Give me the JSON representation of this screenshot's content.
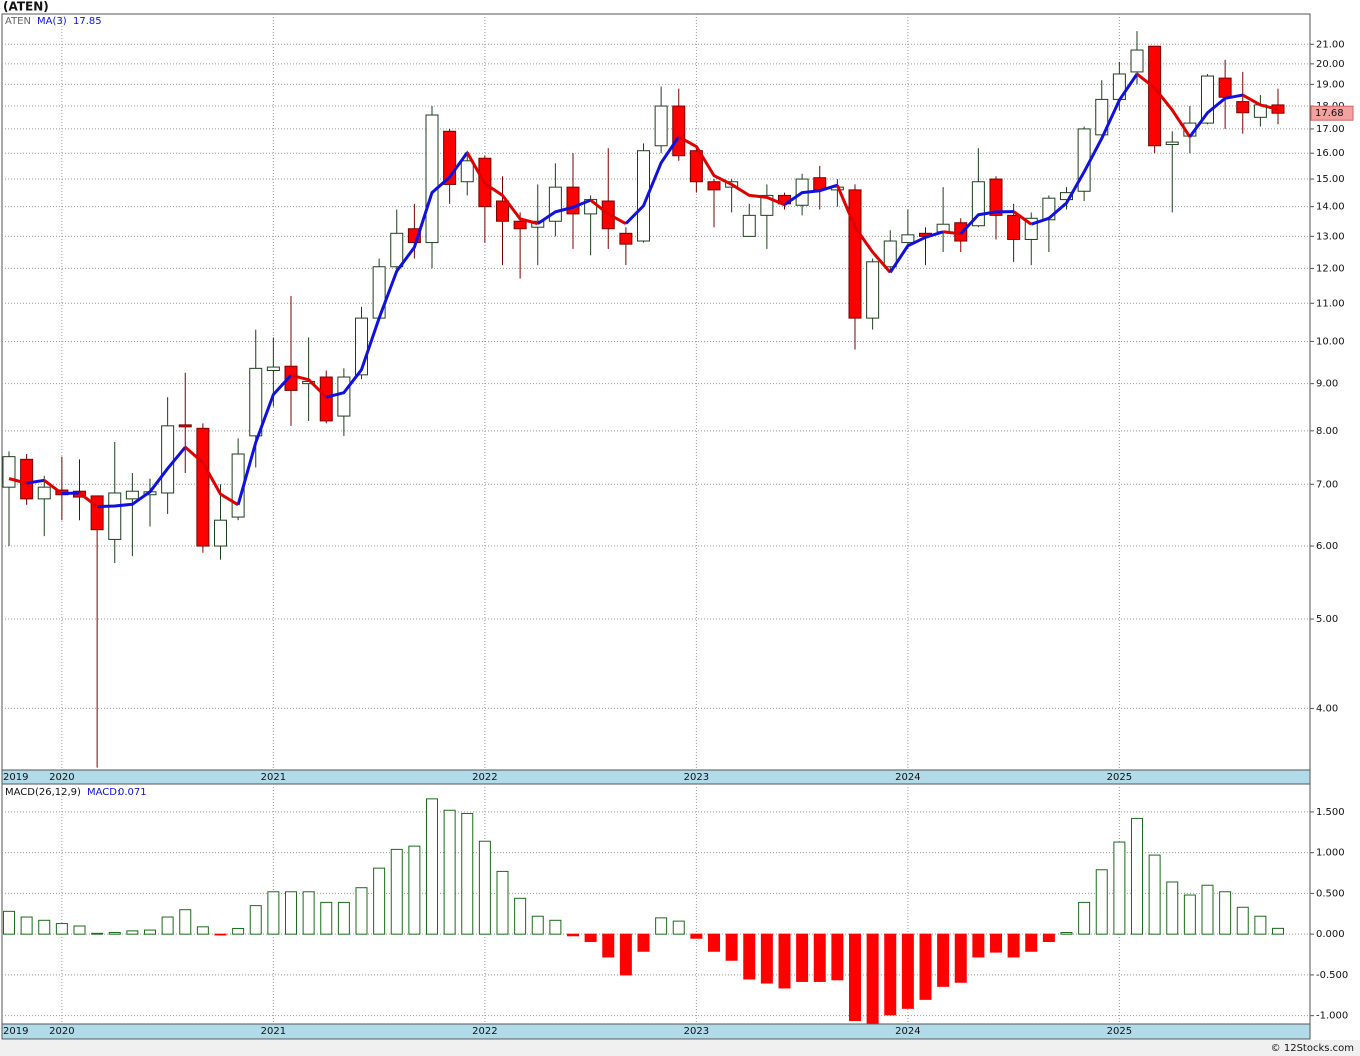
{
  "chart_data": [
    {
      "type": "candlestick",
      "title": "(ATEN)",
      "categories": [
        "2019",
        null,
        null,
        "2020",
        null,
        null,
        null,
        null,
        null,
        null,
        null,
        null,
        null,
        null,
        null,
        "2021",
        null,
        null,
        null,
        null,
        null,
        null,
        null,
        null,
        null,
        null,
        null,
        "2022",
        null,
        null,
        null,
        null,
        null,
        null,
        null,
        null,
        null,
        null,
        null,
        "2023",
        null,
        null,
        null,
        null,
        null,
        null,
        null,
        null,
        null,
        null,
        null,
        "2024",
        null,
        null,
        null,
        null,
        null,
        null,
        null,
        null,
        null,
        null,
        null,
        "2025",
        null,
        null,
        null,
        null,
        null,
        null,
        null,
        null,
        null
      ],
      "series": [
        {
          "name": "ATEN",
          "open": [
            6.95,
            7.45,
            6.75,
            6.9,
            6.88,
            6.8,
            6.1,
            6.75,
            6.82,
            6.85,
            8.12,
            8.05,
            6.0,
            6.45,
            7.9,
            9.3,
            9.4,
            9.0,
            9.15,
            8.3,
            9.2,
            10.6,
            12.05,
            13.25,
            12.8,
            16.9,
            14.9,
            15.8,
            14.2,
            13.5,
            13.3,
            13.5,
            14.7,
            13.75,
            14.2,
            13.1,
            12.85,
            16.3,
            18.0,
            16.1,
            14.9,
            14.7,
            13.0,
            13.7,
            14.4,
            14.05,
            15.05,
            14.6,
            14.6,
            10.6,
            12.05,
            12.8,
            13.1,
            13.15,
            13.45,
            13.35,
            15.0,
            13.7,
            12.9,
            13.55,
            14.25,
            14.55,
            16.75,
            18.3,
            19.6,
            20.9,
            16.35,
            16.7,
            17.25,
            19.3,
            18.2,
            17.5,
            18.05
          ],
          "high": [
            7.6,
            7.55,
            7.15,
            7.5,
            7.45,
            6.8,
            7.78,
            7.2,
            7.1,
            8.7,
            9.25,
            8.15,
            7.0,
            7.85,
            10.3,
            10.1,
            11.2,
            10.1,
            9.3,
            9.35,
            10.9,
            12.3,
            13.9,
            14.1,
            18.0,
            17.0,
            16.1,
            15.9,
            15.1,
            13.8,
            14.8,
            15.6,
            16.0,
            14.4,
            16.2,
            13.3,
            16.4,
            18.9,
            18.8,
            16.3,
            15.0,
            15.0,
            14.1,
            14.8,
            14.5,
            15.2,
            15.5,
            15.0,
            14.8,
            12.3,
            13.2,
            13.9,
            13.3,
            14.7,
            13.6,
            16.2,
            15.1,
            14.1,
            13.8,
            14.4,
            14.7,
            17.1,
            19.2,
            20.1,
            21.7,
            20.9,
            16.9,
            18.0,
            19.5,
            20.2,
            19.6,
            18.5,
            18.8
          ],
          "low": [
            6.0,
            6.65,
            6.15,
            6.4,
            6.4,
            3.45,
            5.75,
            5.85,
            6.3,
            6.5,
            7.2,
            5.9,
            5.8,
            6.4,
            7.3,
            8.5,
            8.1,
            8.2,
            8.15,
            7.9,
            9.1,
            10.5,
            11.9,
            12.3,
            12.0,
            14.1,
            14.4,
            12.8,
            12.1,
            11.7,
            12.1,
            13.0,
            12.6,
            12.4,
            12.6,
            12.1,
            12.8,
            16.0,
            15.7,
            14.5,
            13.3,
            13.8,
            13.0,
            12.6,
            13.9,
            13.7,
            13.9,
            14.0,
            9.8,
            10.3,
            11.9,
            12.6,
            12.1,
            12.5,
            12.5,
            13.3,
            12.9,
            12.2,
            12.1,
            12.5,
            13.9,
            14.2,
            16.6,
            17.8,
            19.0,
            16.0,
            13.8,
            16.0,
            17.2,
            17.0,
            16.8,
            17.1,
            17.2
          ],
          "close": [
            7.5,
            6.75,
            6.95,
            6.82,
            6.78,
            6.25,
            6.85,
            6.88,
            6.87,
            8.1,
            8.08,
            6.0,
            6.4,
            7.55,
            9.35,
            9.38,
            8.85,
            9.05,
            8.2,
            9.15,
            10.6,
            12.05,
            13.1,
            12.8,
            17.6,
            14.8,
            15.7,
            14.0,
            13.5,
            13.25,
            13.5,
            14.7,
            13.75,
            14.25,
            13.25,
            12.75,
            16.1,
            18.0,
            15.9,
            14.9,
            14.6,
            14.9,
            13.7,
            14.4,
            14.1,
            15.0,
            14.6,
            14.7,
            10.6,
            12.2,
            12.85,
            13.05,
            13.0,
            13.4,
            12.85,
            14.9,
            13.7,
            12.9,
            13.6,
            14.3,
            14.5,
            17.0,
            18.3,
            19.5,
            20.7,
            16.3,
            16.45,
            17.25,
            19.4,
            18.4,
            17.7,
            18.05,
            17.68
          ],
          "up_color": "#ffffff",
          "down_color": "#ff0000"
        }
      ],
      "ma": {
        "name": "MA(3)",
        "rising_color": "#1010e0",
        "falling_color": "#e00000",
        "values": [
          7.1,
          7.02,
          7.07,
          6.84,
          6.85,
          6.62,
          6.63,
          6.66,
          6.87,
          7.28,
          7.68,
          7.39,
          6.83,
          6.65,
          7.77,
          8.76,
          9.19,
          9.09,
          8.7,
          8.8,
          9.32,
          10.6,
          11.92,
          12.65,
          14.5,
          15.07,
          16.03,
          14.83,
          14.4,
          13.58,
          13.42,
          13.82,
          13.98,
          14.23,
          13.75,
          13.42,
          14.03,
          15.62,
          16.67,
          16.27,
          15.13,
          14.8,
          14.4,
          14.33,
          14.07,
          14.5,
          14.57,
          14.77,
          13.3,
          12.5,
          11.88,
          12.7,
          12.97,
          13.15,
          13.08,
          13.72,
          13.82,
          13.83,
          13.4,
          13.6,
          14.13,
          15.27,
          16.6,
          18.27,
          19.5,
          18.83,
          17.82,
          16.67,
          17.7,
          18.35,
          18.5,
          18.05,
          17.85
        ]
      },
      "log_scale": true,
      "grid": true,
      "ylim": [
        3.43,
        22.65
      ],
      "yticks": [
        {
          "value": 4,
          "label": "4.00"
        },
        {
          "value": 5,
          "label": "5.00"
        },
        {
          "value": 6,
          "label": "6.00"
        },
        {
          "value": 7,
          "label": "7.00"
        },
        {
          "value": 8,
          "label": "8.00"
        },
        {
          "value": 9,
          "label": "9.00"
        },
        {
          "value": 10,
          "label": "10.00"
        },
        {
          "value": 11,
          "label": "11.00"
        },
        {
          "value": 12,
          "label": "12.00"
        },
        {
          "value": 13,
          "label": "13.00"
        },
        {
          "value": 14,
          "label": "14.00"
        },
        {
          "value": 15,
          "label": "15.00"
        },
        {
          "value": 16,
          "label": "16.00"
        },
        {
          "value": 17,
          "label": "17.00"
        },
        {
          "value": 18,
          "label": "18.00"
        },
        {
          "value": 19,
          "label": "19.00"
        },
        {
          "value": 20,
          "label": "20.00"
        },
        {
          "value": 21,
          "label": "21.00"
        }
      ]
    },
    {
      "type": "bar",
      "title": "MACD(26,12,9)",
      "categories": [
        "2019",
        null,
        null,
        "2020",
        null,
        null,
        null,
        null,
        null,
        null,
        null,
        null,
        null,
        null,
        null,
        "2021",
        null,
        null,
        null,
        null,
        null,
        null,
        null,
        null,
        null,
        null,
        null,
        "2022",
        null,
        null,
        null,
        null,
        null,
        null,
        null,
        null,
        null,
        null,
        null,
        "2023",
        null,
        null,
        null,
        null,
        null,
        null,
        null,
        null,
        null,
        null,
        null,
        "2024",
        null,
        null,
        null,
        null,
        null,
        null,
        null,
        null,
        null,
        null,
        null,
        "2025",
        null,
        null,
        null,
        null,
        null,
        null,
        null,
        null,
        null
      ],
      "series": [
        {
          "name": "MACD:",
          "positive_color": "#1a6b1a",
          "negative_color": "#ff0000",
          "values": [
            0.28,
            0.21,
            0.17,
            0.13,
            0.1,
            0.01,
            0.02,
            0.04,
            0.05,
            0.21,
            0.3,
            0.09,
            -0.01,
            0.07,
            0.35,
            0.52,
            0.52,
            0.52,
            0.39,
            0.39,
            0.57,
            0.81,
            1.04,
            1.08,
            1.66,
            1.52,
            1.48,
            1.14,
            0.77,
            0.44,
            0.22,
            0.17,
            -0.02,
            -0.09,
            -0.28,
            -0.5,
            -0.21,
            0.2,
            0.16,
            -0.05,
            -0.21,
            -0.32,
            -0.55,
            -0.6,
            -0.66,
            -0.58,
            -0.58,
            -0.56,
            -1.06,
            -1.09,
            -0.99,
            -0.91,
            -0.8,
            -0.64,
            -0.59,
            -0.28,
            -0.22,
            -0.28,
            -0.21,
            -0.09,
            0.02,
            0.39,
            0.79,
            1.13,
            1.42,
            0.97,
            0.64,
            0.48,
            0.6,
            0.52,
            0.33,
            0.22,
            0.071
          ]
        }
      ],
      "grid": true,
      "ylim": [
        -1.09,
        1.83
      ],
      "yticks": [
        {
          "value": -1,
          "label": "-1.000"
        },
        {
          "value": -0.5,
          "label": "-0.500"
        },
        {
          "value": 0,
          "label": "0.000"
        },
        {
          "value": 0.5,
          "label": "0.500"
        },
        {
          "value": 1,
          "label": "1.000"
        },
        {
          "value": 1.5,
          "label": "1.500"
        }
      ]
    }
  ],
  "footer": "© 12Stocks.com"
}
